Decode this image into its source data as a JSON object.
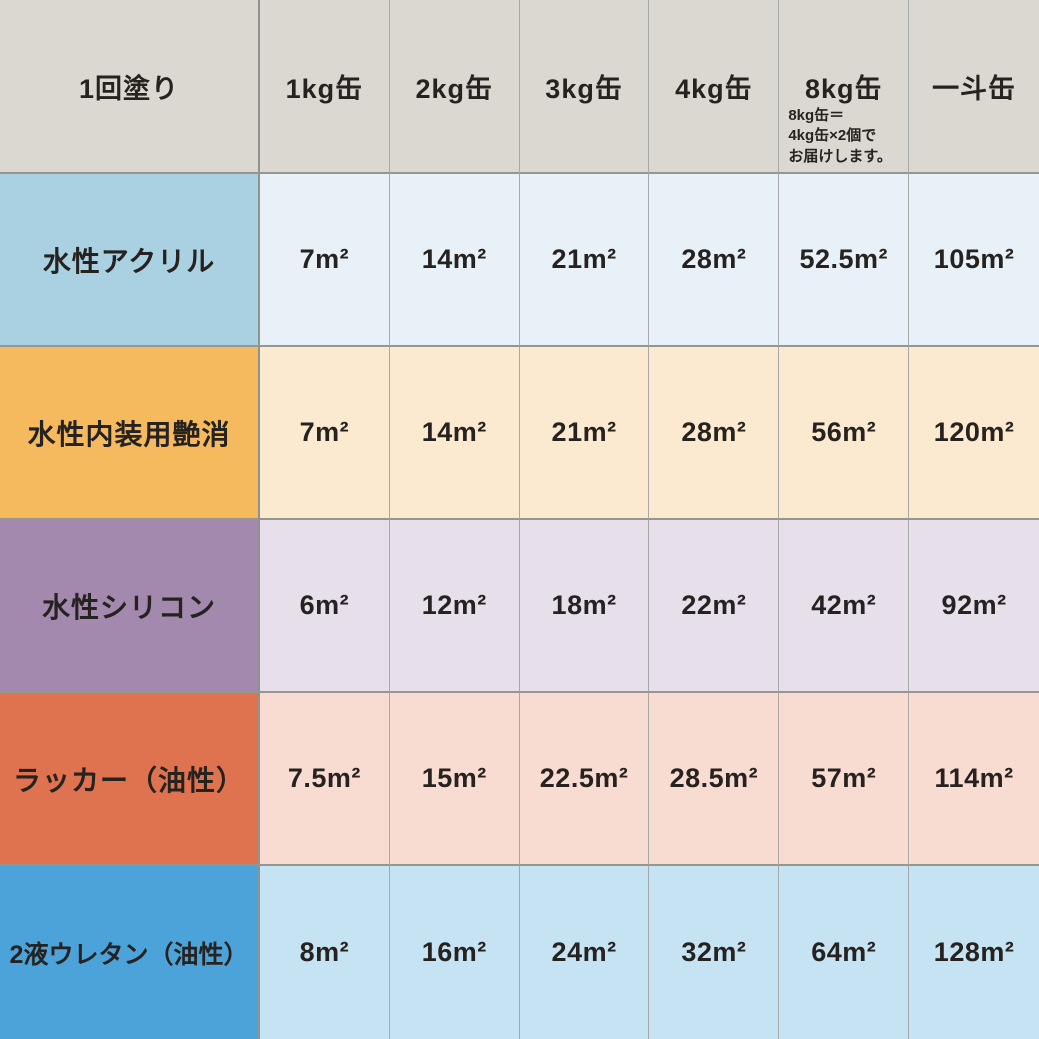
{
  "colors": {
    "header_bg": "#dbd8d2",
    "border_strong": "#8f928f",
    "border_light": "#a5a9a7",
    "text": "#262220"
  },
  "table": {
    "header": {
      "label_col": "1回塗り",
      "cols": [
        "1kg缶",
        "2kg缶",
        "3kg缶",
        "4kg缶",
        "8kg缶",
        "一斗缶"
      ],
      "note_lines": [
        "8kg缶＝",
        "4kg缶×2個で",
        "お届けします。"
      ]
    },
    "rows": [
      {
        "label": "水性アクリル",
        "label_bg": "#a9d1e1",
        "cell_bg": "#e7f1f7",
        "values": [
          "7m²",
          "14m²",
          "21m²",
          "28m²",
          "52.5m²",
          "105m²"
        ]
      },
      {
        "label": "水性内装用艶消",
        "label_bg": "#f6ba5e",
        "cell_bg": "#fcead0",
        "values": [
          "7m²",
          "14m²",
          "21m²",
          "28m²",
          "56m²",
          "120m²"
        ]
      },
      {
        "label": "水性シリコン",
        "label_bg": "#a489af",
        "cell_bg": "#e7e0eb",
        "values": [
          "6m²",
          "12m²",
          "18m²",
          "22m²",
          "42m²",
          "92m²"
        ]
      },
      {
        "label": "ラッカー（油性）",
        "label_bg": "#e0734f",
        "cell_bg": "#f8dcd1",
        "values": [
          "7.5m²",
          "15m²",
          "22.5m²",
          "28.5m²",
          "57m²",
          "114m²"
        ]
      },
      {
        "label": "2液ウレタン（油性）",
        "label_bg": "#4ba3d9",
        "cell_bg": "#c6e3f3",
        "values": [
          "8m²",
          "16m²",
          "24m²",
          "32m²",
          "64m²",
          "128m²"
        ]
      }
    ]
  },
  "chart_data": {
    "type": "table",
    "unit": "m²",
    "columns": [
      "1回塗り",
      "1kg缶",
      "2kg缶",
      "3kg缶",
      "4kg缶",
      "8kg缶",
      "一斗缶"
    ],
    "note": "8kg缶＝4kg缶×2個でお届けします。",
    "rows": [
      {
        "label": "水性アクリル",
        "values": [
          7,
          14,
          21,
          28,
          52.5,
          105
        ]
      },
      {
        "label": "水性内装用艶消",
        "values": [
          7,
          14,
          21,
          28,
          56,
          120
        ]
      },
      {
        "label": "水性シリコン",
        "values": [
          6,
          12,
          18,
          22,
          42,
          92
        ]
      },
      {
        "label": "ラッカー（油性）",
        "values": [
          7.5,
          15,
          22.5,
          28.5,
          57,
          114
        ]
      },
      {
        "label": "2液ウレタン（油性）",
        "values": [
          8,
          16,
          24,
          32,
          64,
          128
        ]
      }
    ]
  }
}
